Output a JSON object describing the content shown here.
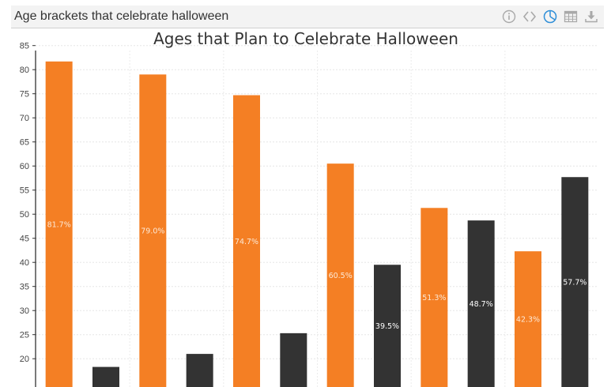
{
  "panel": {
    "title": "Age brackets that celebrate halloween",
    "tools": [
      {
        "icon": "info-icon"
      },
      {
        "icon": "code-icon"
      },
      {
        "icon": "pie-chart-icon"
      },
      {
        "icon": "table-icon"
      },
      {
        "icon": "download-icon"
      }
    ],
    "active_tool_color": "#2f8fd8",
    "tool_color": "#a9a9a9"
  },
  "colors": {
    "orange": "#f47f24",
    "dark": "#333333",
    "label_on_orange": "#fde9d6",
    "label_on_dark": "#ffffff"
  },
  "chart_data": {
    "type": "bar",
    "title": "Ages that Plan to Celebrate Halloween",
    "xlabel": "",
    "ylabel": "",
    "ylim": [
      17,
      86
    ],
    "yticks": [
      20,
      25,
      30,
      35,
      40,
      45,
      50,
      55,
      60,
      65,
      70,
      75,
      80,
      85
    ],
    "grid": true,
    "legend": "none",
    "bars": [
      {
        "value": 81.7,
        "label": "81.7%",
        "color": "orange"
      },
      {
        "value": 18.3,
        "label": "",
        "color": "dark"
      },
      {
        "value": 79.0,
        "label": "79.0%",
        "color": "orange"
      },
      {
        "value": 21.0,
        "label": "",
        "color": "dark"
      },
      {
        "value": 74.7,
        "label": "74.7%",
        "color": "orange"
      },
      {
        "value": 25.3,
        "label": "",
        "color": "dark"
      },
      {
        "value": 60.5,
        "label": "60.5%",
        "color": "orange"
      },
      {
        "value": 39.5,
        "label": "39.5%",
        "color": "dark"
      },
      {
        "value": 51.3,
        "label": "51.3%",
        "color": "orange"
      },
      {
        "value": 48.7,
        "label": "48.7%",
        "color": "dark"
      },
      {
        "value": 42.3,
        "label": "42.3%",
        "color": "orange"
      },
      {
        "value": 57.7,
        "label": "57.7%",
        "color": "dark"
      }
    ]
  }
}
